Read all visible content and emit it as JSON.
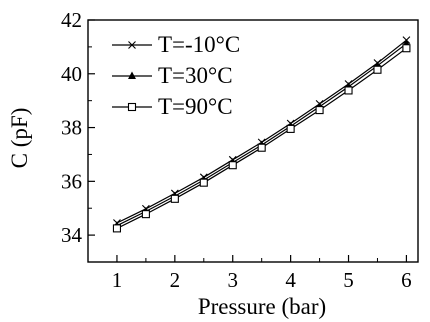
{
  "chart_data": {
    "type": "line",
    "xlabel": "Pressure (bar)",
    "ylabel": "C (pF)",
    "xlim": [
      0.5,
      6.2
    ],
    "ylim": [
      33,
      42
    ],
    "xticks": [
      1,
      2,
      3,
      4,
      5,
      6
    ],
    "yticks": [
      34,
      36,
      38,
      40,
      42
    ],
    "grid": false,
    "legend_position": "top-left",
    "x": [
      1,
      1.5,
      2,
      2.5,
      3,
      3.5,
      4,
      4.5,
      5,
      5.5,
      6
    ],
    "series": [
      {
        "name": "T=-10°C",
        "marker": "x",
        "values": [
          34.45,
          34.98,
          35.55,
          36.15,
          36.8,
          37.45,
          38.15,
          38.88,
          39.62,
          40.4,
          41.25
        ]
      },
      {
        "name": "T=30°C",
        "marker": "triangle",
        "values": [
          34.35,
          34.88,
          35.45,
          36.05,
          36.7,
          37.35,
          38.05,
          38.78,
          39.52,
          40.3,
          41.12
        ]
      },
      {
        "name": "T=90°C",
        "marker": "square",
        "values": [
          34.25,
          34.78,
          35.35,
          35.95,
          36.6,
          37.25,
          37.95,
          38.65,
          39.38,
          40.15,
          40.95
        ]
      }
    ]
  }
}
